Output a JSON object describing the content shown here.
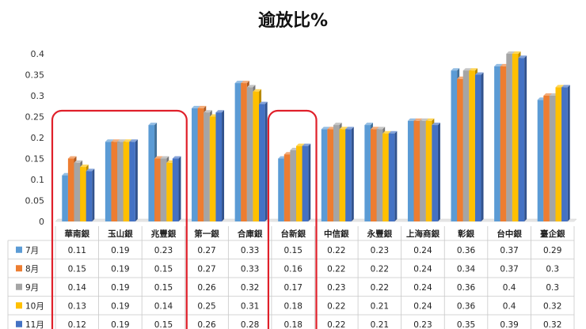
{
  "chart_data": {
    "type": "bar",
    "title": "逾放比%",
    "categories": [
      "華南銀",
      "玉山銀",
      "兆豐銀",
      "第一銀",
      "合庫銀",
      "台新銀",
      "中信銀",
      "永豐銀",
      "上海商銀",
      "彰銀",
      "台中銀",
      "臺企銀"
    ],
    "series": [
      {
        "name": "7月",
        "color": "#5B9BD5",
        "values": [
          0.11,
          0.19,
          0.23,
          0.27,
          0.33,
          0.15,
          0.22,
          0.23,
          0.24,
          0.36,
          0.37,
          0.29
        ]
      },
      {
        "name": "8月",
        "color": "#ED7D31",
        "values": [
          0.15,
          0.19,
          0.15,
          0.27,
          0.33,
          0.16,
          0.22,
          0.22,
          0.24,
          0.34,
          0.37,
          0.3
        ]
      },
      {
        "name": "9月",
        "color": "#A5A5A5",
        "values": [
          0.14,
          0.19,
          0.15,
          0.26,
          0.32,
          0.17,
          0.23,
          0.22,
          0.24,
          0.36,
          0.4,
          0.3
        ]
      },
      {
        "name": "10月",
        "color": "#FFC000",
        "values": [
          0.13,
          0.19,
          0.14,
          0.25,
          0.31,
          0.18,
          0.22,
          0.21,
          0.24,
          0.36,
          0.4,
          0.32
        ]
      },
      {
        "name": "11月",
        "color": "#4472C4",
        "values": [
          0.12,
          0.19,
          0.15,
          0.26,
          0.28,
          0.18,
          0.22,
          0.21,
          0.23,
          0.35,
          0.39,
          0.32
        ]
      }
    ],
    "y_ticks": [
      "0",
      "0.05",
      "0.1",
      "0.15",
      "0.2",
      "0.25",
      "0.3",
      "0.35",
      "0.4"
    ],
    "ylim": [
      0,
      0.4
    ],
    "grid": false,
    "legend": "data-table",
    "highlight_color": "#E0202A",
    "highlights": [
      [
        0,
        2
      ],
      [
        5,
        5
      ]
    ]
  }
}
